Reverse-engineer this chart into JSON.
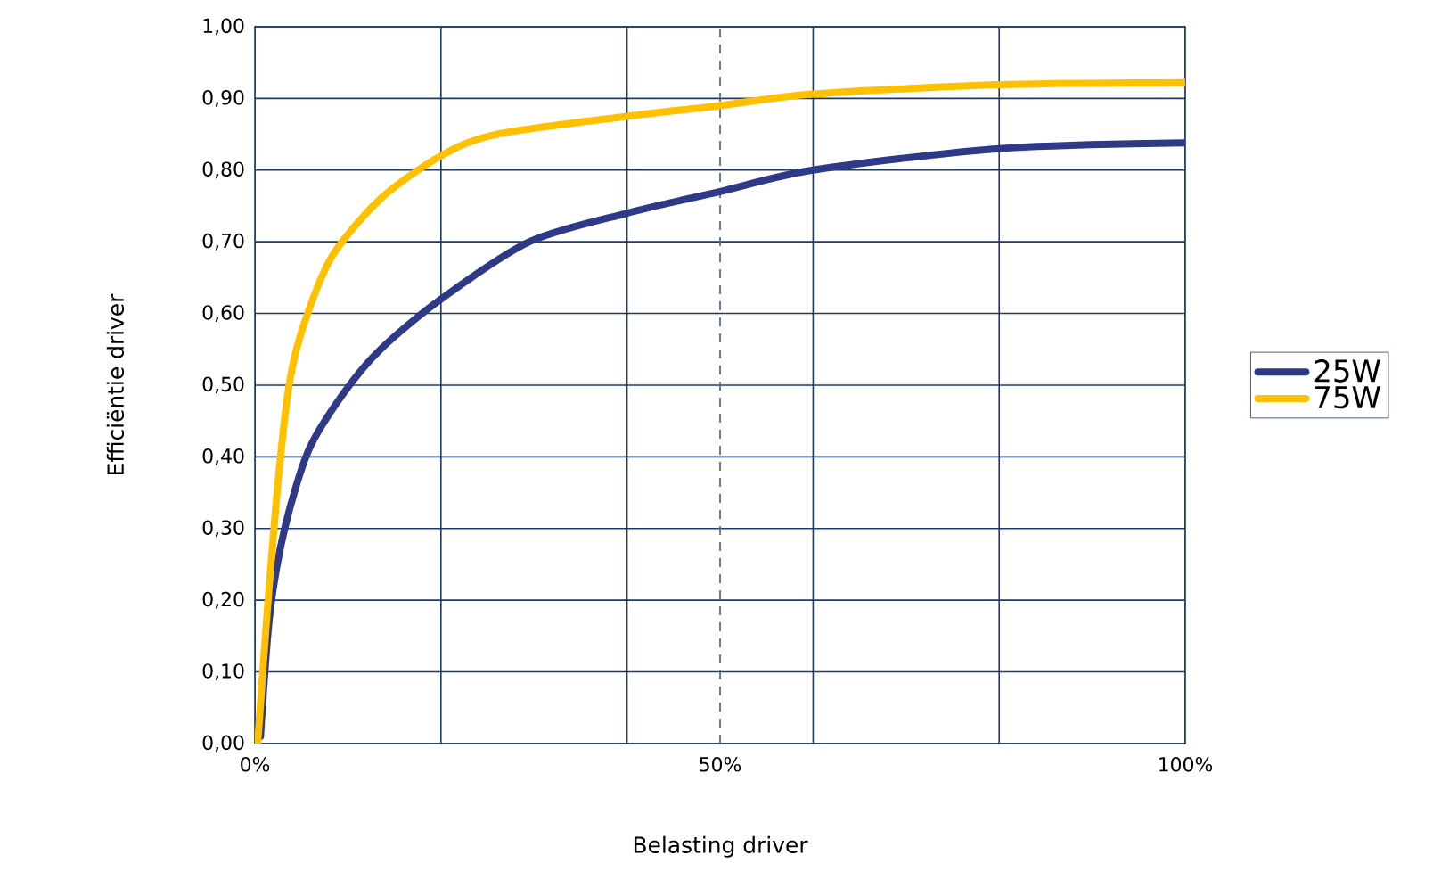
{
  "chart_data": {
    "type": "line",
    "xlabel": "Belasting driver",
    "ylabel": "Efficiëntie driver",
    "xlim": [
      0,
      100
    ],
    "ylim": [
      0,
      1
    ],
    "xticks": [
      {
        "value": 0,
        "label": "0%"
      },
      {
        "value": 20,
        "label": null
      },
      {
        "value": 40,
        "label": null
      },
      {
        "value": 50,
        "label": "50%"
      },
      {
        "value": 60,
        "label": null
      },
      {
        "value": 80,
        "label": null
      },
      {
        "value": 100,
        "label": "100%"
      }
    ],
    "yticks": [
      {
        "value": 0,
        "label": "0,00"
      },
      {
        "value": 0.1,
        "label": "0,10"
      },
      {
        "value": 0.2,
        "label": "0,20"
      },
      {
        "value": 0.3,
        "label": "0,30"
      },
      {
        "value": 0.4,
        "label": "0,40"
      },
      {
        "value": 0.5,
        "label": "0,50"
      },
      {
        "value": 0.6,
        "label": "0,60"
      },
      {
        "value": 0.7,
        "label": "0,70"
      },
      {
        "value": 0.8,
        "label": "0,80"
      },
      {
        "value": 0.9,
        "label": "0,90"
      },
      {
        "value": 1,
        "label": "1,00"
      }
    ],
    "grid": true,
    "legend": "right",
    "marker": "none",
    "line_style": "solid",
    "ref_lines": [
      {
        "axis": "x",
        "value": 50,
        "line_style": "dashed",
        "color": "#5a6f8f"
      }
    ],
    "series": [
      {
        "name": "25W",
        "color": "#2e3a87",
        "x": [
          0.6,
          1.6,
          3.2,
          5.8,
          9.6,
          13.5,
          20,
          29.5,
          40,
          50,
          60,
          80,
          100
        ],
        "values": [
          0.01,
          0.18,
          0.3,
          0.41,
          0.49,
          0.55,
          0.62,
          0.7,
          0.74,
          0.77,
          0.8,
          0.83,
          0.838
        ]
      },
      {
        "name": "75W",
        "color": "#ffc000",
        "x": [
          0.3,
          1.3,
          2.6,
          3.8,
          5.4,
          8.3,
          13.5,
          20,
          26,
          40,
          50,
          60,
          80,
          100
        ],
        "values": [
          0.0,
          0.18,
          0.38,
          0.51,
          0.59,
          0.68,
          0.76,
          0.82,
          0.85,
          0.875,
          0.89,
          0.906,
          0.919,
          0.922
        ]
      }
    ]
  }
}
